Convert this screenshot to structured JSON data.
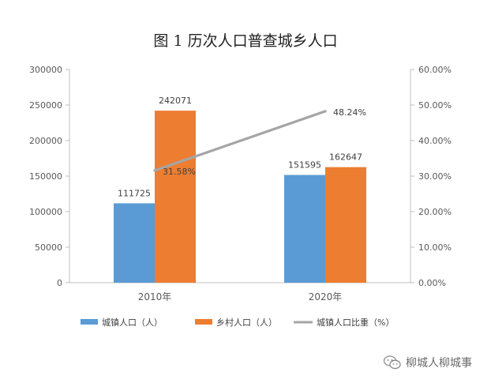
{
  "chart_data": {
    "type": "bar+line",
    "title": "图 1   历次人口普查城乡人口",
    "categories": [
      "2010年",
      "2020年"
    ],
    "series": [
      {
        "name": "城镇人口（人）",
        "kind": "bar",
        "axis": "left",
        "color": "#5b9bd5",
        "values": [
          111725,
          151595
        ],
        "labels": [
          "111725",
          "151595"
        ]
      },
      {
        "name": "乡村人口（人）",
        "kind": "bar",
        "axis": "left",
        "color": "#ed7d31",
        "values": [
          242071,
          162647
        ],
        "labels": [
          "242071",
          "162647"
        ]
      },
      {
        "name": "城镇人口比重（%）",
        "kind": "line",
        "axis": "right",
        "color": "#a5a5a5",
        "values": [
          31.58,
          48.24
        ],
        "labels": [
          "31.58%",
          "48.24%"
        ]
      }
    ],
    "y_left": {
      "min": 0,
      "max": 300000,
      "ticks": [
        "0",
        "50000",
        "100000",
        "150000",
        "200000",
        "250000",
        "300000"
      ]
    },
    "y_right": {
      "min": 0,
      "max": 60,
      "ticks": [
        "0.00%",
        "10.00%",
        "20.00%",
        "30.00%",
        "40.00%",
        "50.00%",
        "60.00%"
      ]
    },
    "grid": false,
    "legend_position": "bottom"
  },
  "watermark": {
    "text": "柳城人柳城事",
    "icon": "wechat-icon"
  }
}
